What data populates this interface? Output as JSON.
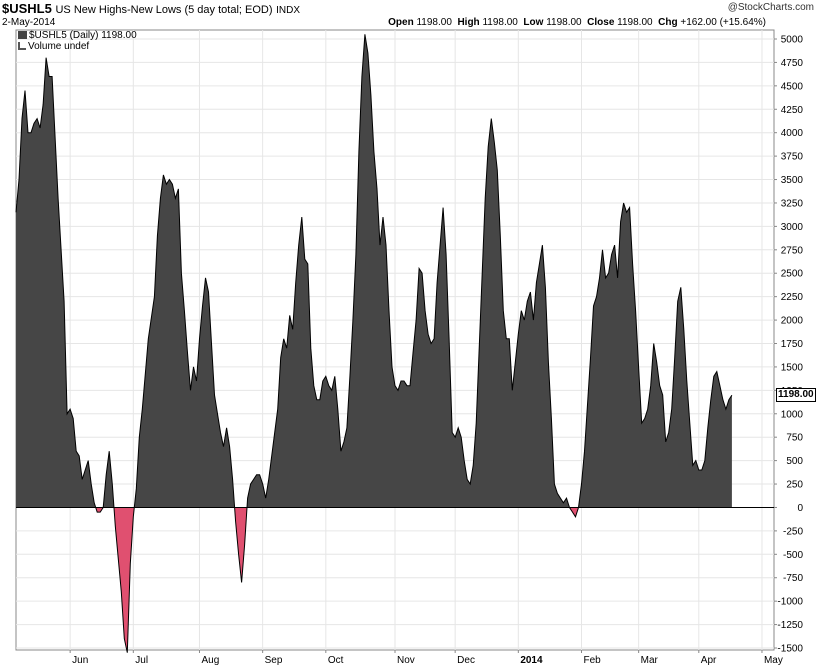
{
  "header": {
    "symbol": "$USHL5",
    "description": "US New Highs-New Lows (5 day total; EOD)",
    "exchange": "INDX",
    "date": "2-May-2014",
    "copyright": "@StockCharts.com",
    "open_label": "Open",
    "open": "1198.00",
    "high_label": "High",
    "high": "1198.00",
    "low_label": "Low",
    "low": "1198.00",
    "close_label": "Close",
    "close": "1198.00",
    "chg_label": "Chg",
    "chg": "+162.00 (+15.64%)"
  },
  "legend": {
    "series_label": "$USHL5 (Daily) 1198.00",
    "volume_label": "Volume undef"
  },
  "colors": {
    "positive_fill": "#464646",
    "negative_fill": "#e05070",
    "line": "#000000",
    "grid": "#e6e6e6",
    "background": "#ffffff"
  },
  "chart_data": {
    "type": "area",
    "title": "US New Highs-New Lows (5 day total; EOD)",
    "series_name": "$USHL5 (Daily)",
    "xlabel": "",
    "ylabel": "",
    "ylim": [
      -1500,
      5000
    ],
    "yticks": [
      -1500,
      -1250,
      -1000,
      -750,
      -500,
      -250,
      0,
      250,
      500,
      750,
      1000,
      1250,
      1500,
      1750,
      2000,
      2250,
      2500,
      2750,
      3000,
      3250,
      3500,
      3750,
      4000,
      4250,
      4500,
      4750,
      5000
    ],
    "x_range": [
      0,
      252
    ],
    "x_ticks": [
      {
        "label": "Jun",
        "day": 18
      },
      {
        "label": "Jul",
        "day": 39
      },
      {
        "label": "Aug",
        "day": 61
      },
      {
        "label": "Sep",
        "day": 82
      },
      {
        "label": "Oct",
        "day": 103
      },
      {
        "label": "Nov",
        "day": 126
      },
      {
        "label": "Dec",
        "day": 146
      },
      {
        "label": "2014",
        "day": 167
      },
      {
        "label": "Feb",
        "day": 188
      },
      {
        "label": "Mar",
        "day": 207
      },
      {
        "label": "Apr",
        "day": 227
      },
      {
        "label": "May",
        "day": 248
      }
    ],
    "last_value": "1198.00",
    "points": [
      [
        0,
        3150
      ],
      [
        1,
        3500
      ],
      [
        2,
        4150
      ],
      [
        3,
        4450
      ],
      [
        4,
        4000
      ],
      [
        5,
        4000
      ],
      [
        6,
        4100
      ],
      [
        7,
        4150
      ],
      [
        8,
        4050
      ],
      [
        9,
        4300
      ],
      [
        10,
        4800
      ],
      [
        11,
        4600
      ],
      [
        12,
        4600
      ],
      [
        14,
        3300
      ],
      [
        16,
        2200
      ],
      [
        17,
        1000
      ],
      [
        18,
        1050
      ],
      [
        19,
        950
      ],
      [
        20,
        600
      ],
      [
        21,
        550
      ],
      [
        22,
        300
      ],
      [
        24,
        500
      ],
      [
        25,
        250
      ],
      [
        26,
        50
      ],
      [
        27,
        -50
      ],
      [
        28,
        -50
      ],
      [
        29,
        0
      ],
      [
        30,
        350
      ],
      [
        31,
        600
      ],
      [
        32,
        250
      ],
      [
        33,
        -200
      ],
      [
        35,
        -900
      ],
      [
        36,
        -1400
      ],
      [
        37,
        -1550
      ],
      [
        38,
        -600
      ],
      [
        39,
        -100
      ],
      [
        40,
        200
      ],
      [
        41,
        750
      ],
      [
        42,
        1050
      ],
      [
        44,
        1800
      ],
      [
        46,
        2250
      ],
      [
        47,
        2900
      ],
      [
        48,
        3300
      ],
      [
        49,
        3550
      ],
      [
        50,
        3450
      ],
      [
        51,
        3500
      ],
      [
        52,
        3450
      ],
      [
        53,
        3300
      ],
      [
        54,
        3400
      ],
      [
        55,
        2500
      ],
      [
        56,
        2100
      ],
      [
        57,
        1650
      ],
      [
        58,
        1250
      ],
      [
        59,
        1500
      ],
      [
        60,
        1350
      ],
      [
        61,
        1800
      ],
      [
        62,
        2150
      ],
      [
        63,
        2450
      ],
      [
        64,
        2300
      ],
      [
        65,
        1750
      ],
      [
        66,
        1200
      ],
      [
        67,
        1000
      ],
      [
        68,
        800
      ],
      [
        69,
        650
      ],
      [
        70,
        850
      ],
      [
        71,
        650
      ],
      [
        72,
        300
      ],
      [
        73,
        -150
      ],
      [
        74,
        -500
      ],
      [
        75,
        -800
      ],
      [
        76,
        -400
      ],
      [
        77,
        100
      ],
      [
        78,
        250
      ],
      [
        79,
        300
      ],
      [
        80,
        350
      ],
      [
        81,
        350
      ],
      [
        82,
        250
      ],
      [
        83,
        100
      ],
      [
        84,
        300
      ],
      [
        85,
        550
      ],
      [
        86,
        800
      ],
      [
        87,
        1050
      ],
      [
        88,
        1600
      ],
      [
        89,
        1800
      ],
      [
        90,
        1700
      ],
      [
        91,
        2050
      ],
      [
        92,
        1900
      ],
      [
        93,
        2400
      ],
      [
        94,
        2800
      ],
      [
        95,
        3100
      ],
      [
        96,
        2650
      ],
      [
        97,
        2600
      ],
      [
        98,
        1700
      ],
      [
        99,
        1300
      ],
      [
        100,
        1150
      ],
      [
        101,
        1150
      ],
      [
        102,
        1350
      ],
      [
        103,
        1400
      ],
      [
        104,
        1300
      ],
      [
        105,
        1250
      ],
      [
        106,
        1400
      ],
      [
        107,
        1050
      ],
      [
        108,
        600
      ],
      [
        109,
        700
      ],
      [
        110,
        850
      ],
      [
        111,
        1400
      ],
      [
        112,
        2000
      ],
      [
        113,
        2700
      ],
      [
        114,
        3800
      ],
      [
        115,
        4600
      ],
      [
        116,
        5050
      ],
      [
        117,
        4850
      ],
      [
        118,
        4400
      ],
      [
        119,
        3800
      ],
      [
        120,
        3400
      ],
      [
        121,
        2800
      ],
      [
        122,
        3100
      ],
      [
        123,
        2800
      ],
      [
        124,
        2100
      ],
      [
        125,
        1500
      ],
      [
        126,
        1300
      ],
      [
        127,
        1250
      ],
      [
        128,
        1350
      ],
      [
        129,
        1350
      ],
      [
        130,
        1300
      ],
      [
        131,
        1300
      ],
      [
        132,
        1650
      ],
      [
        133,
        2000
      ],
      [
        134,
        2550
      ],
      [
        135,
        2500
      ],
      [
        136,
        2100
      ],
      [
        137,
        1850
      ],
      [
        138,
        1750
      ],
      [
        139,
        1800
      ],
      [
        140,
        2400
      ],
      [
        141,
        2800
      ],
      [
        142,
        3200
      ],
      [
        143,
        2700
      ],
      [
        144,
        1800
      ],
      [
        145,
        800
      ],
      [
        146,
        750
      ],
      [
        147,
        850
      ],
      [
        148,
        750
      ],
      [
        149,
        500
      ],
      [
        150,
        300
      ],
      [
        151,
        250
      ],
      [
        152,
        450
      ],
      [
        153,
        900
      ],
      [
        154,
        1700
      ],
      [
        155,
        2500
      ],
      [
        156,
        3300
      ],
      [
        157,
        3850
      ],
      [
        158,
        4150
      ],
      [
        159,
        3900
      ],
      [
        160,
        3600
      ],
      [
        161,
        2900
      ],
      [
        162,
        2100
      ],
      [
        163,
        1800
      ],
      [
        164,
        1800
      ],
      [
        165,
        1250
      ],
      [
        166,
        1550
      ],
      [
        167,
        1850
      ],
      [
        168,
        2100
      ],
      [
        169,
        2000
      ],
      [
        170,
        2200
      ],
      [
        171,
        2300
      ],
      [
        172,
        2000
      ],
      [
        173,
        2400
      ],
      [
        174,
        2600
      ],
      [
        175,
        2800
      ],
      [
        176,
        2350
      ],
      [
        177,
        1550
      ],
      [
        178,
        950
      ],
      [
        179,
        250
      ],
      [
        180,
        150
      ],
      [
        181,
        100
      ],
      [
        182,
        50
      ],
      [
        183,
        100
      ],
      [
        184,
        0
      ],
      [
        185,
        -50
      ],
      [
        186,
        -100
      ],
      [
        187,
        0
      ],
      [
        188,
        250
      ],
      [
        189,
        600
      ],
      [
        190,
        1100
      ],
      [
        191,
        1600
      ],
      [
        192,
        2150
      ],
      [
        193,
        2250
      ],
      [
        194,
        2450
      ],
      [
        195,
        2750
      ],
      [
        196,
        2450
      ],
      [
        197,
        2500
      ],
      [
        198,
        2700
      ],
      [
        199,
        2800
      ],
      [
        200,
        2450
      ],
      [
        201,
        3050
      ],
      [
        202,
        3250
      ],
      [
        203,
        3150
      ],
      [
        204,
        3200
      ],
      [
        205,
        2600
      ],
      [
        206,
        2100
      ],
      [
        207,
        1500
      ],
      [
        208,
        900
      ],
      [
        209,
        950
      ],
      [
        210,
        1050
      ],
      [
        211,
        1300
      ],
      [
        212,
        1750
      ],
      [
        213,
        1550
      ],
      [
        214,
        1300
      ],
      [
        215,
        1200
      ],
      [
        216,
        700
      ],
      [
        217,
        800
      ],
      [
        218,
        1050
      ],
      [
        219,
        1600
      ],
      [
        220,
        2200
      ],
      [
        221,
        2350
      ],
      [
        222,
        1900
      ],
      [
        223,
        1350
      ],
      [
        224,
        900
      ],
      [
        225,
        450
      ],
      [
        226,
        500
      ],
      [
        227,
        400
      ],
      [
        228,
        400
      ],
      [
        229,
        500
      ],
      [
        230,
        850
      ],
      [
        231,
        1150
      ],
      [
        232,
        1400
      ],
      [
        233,
        1450
      ],
      [
        234,
        1300
      ],
      [
        235,
        1150
      ],
      [
        236,
        1050
      ],
      [
        237,
        1150
      ],
      [
        238,
        1198
      ]
    ]
  }
}
